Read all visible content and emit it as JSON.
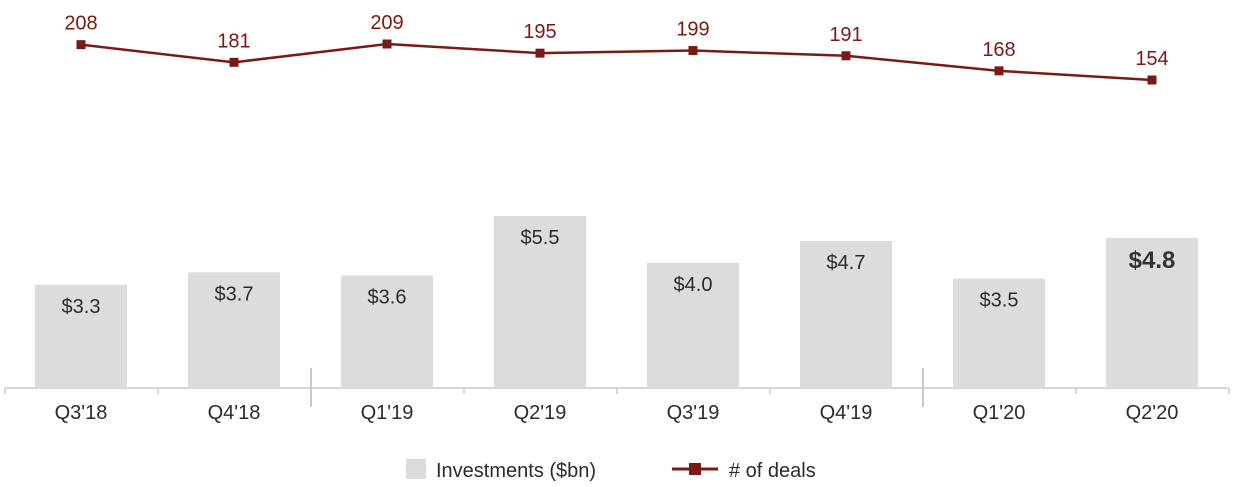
{
  "chart_data": {
    "type": "bar",
    "categories": [
      "Q3'18",
      "Q4'18",
      "Q1'19",
      "Q2'19",
      "Q3'19",
      "Q4'19",
      "Q1'20",
      "Q2'20"
    ],
    "series": [
      {
        "name": "Investments ($bn)",
        "type": "bar",
        "values": [
          3.3,
          3.7,
          3.6,
          5.5,
          4.0,
          4.7,
          3.5,
          4.8
        ],
        "labels": [
          "$3.3",
          "$3.7",
          "$3.6",
          "$5.5",
          "$4.0",
          "$4.7",
          "$3.5",
          "$4.8"
        ],
        "color": "#dcdcdc"
      },
      {
        "name": "# of deals",
        "type": "line",
        "values": [
          208,
          181,
          209,
          195,
          199,
          191,
          168,
          154
        ],
        "labels": [
          "208",
          "181",
          "209",
          "195",
          "199",
          "191",
          "168",
          "154"
        ],
        "color": "#7a1a14"
      }
    ],
    "highlight_index": 7,
    "bar_ylim": [
      0,
      5.5
    ],
    "line_ylim": [
      154,
      209
    ],
    "legend_position": "bottom-center",
    "grid": false
  }
}
